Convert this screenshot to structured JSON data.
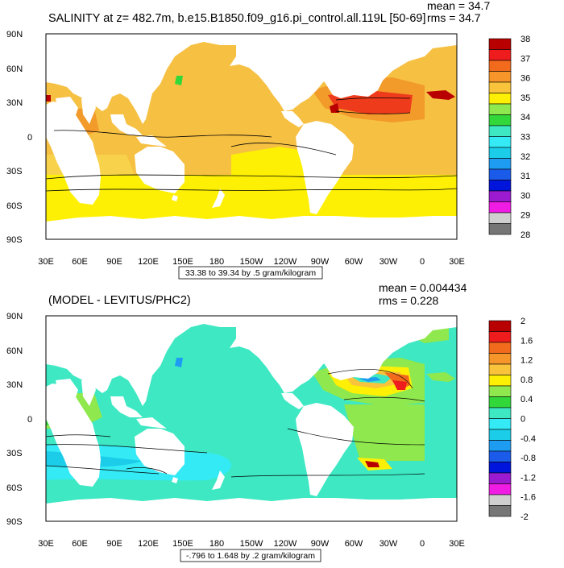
{
  "top": {
    "title": "SALINITY at z= 482.7m, b.e15.B1850.f09_g16.pi_control.all.119L [50-69]",
    "mean": "mean = 34.7",
    "rms": "rms = 34.7",
    "range": "33.38 to 39.34 by .5 gram/kilogram",
    "colorbar": {
      "labels": [
        "38",
        "37",
        "36",
        "35",
        "34",
        "33",
        "32",
        "31",
        "30",
        "29",
        "28"
      ],
      "colors": [
        "#b80000",
        "#ee1c1c",
        "#f26b1d",
        "#f5952a",
        "#f9c33b",
        "#fdf005",
        "#8fe84d",
        "#32d83a",
        "#3de8c3",
        "#34eaf5",
        "#1bcde9",
        "#1e9cf2",
        "#1a5be9",
        "#0015dc",
        "#9c1bd1",
        "#f01ce4",
        "#cfcfcf",
        "#767676"
      ]
    }
  },
  "bottom": {
    "title": "(MODEL - LEVITUS/PHC2)",
    "mean": "mean = 0.004434",
    "rms": "rms = 0.228",
    "range": "-.796 to 1.648 by .2 gram/kilogram",
    "colorbar": {
      "labels": [
        "2",
        "1.6",
        "1.2",
        "0.8",
        "0.4",
        "0",
        "-0.4",
        "-0.8",
        "-1.2",
        "-1.6",
        "-2"
      ],
      "colors": [
        "#b80000",
        "#ee1c1c",
        "#f26b1d",
        "#f5952a",
        "#f9c33b",
        "#fdf005",
        "#8fe84d",
        "#32d83a",
        "#3de8c3",
        "#34eaf5",
        "#1bcde9",
        "#1e9cf2",
        "#1a5be9",
        "#0015dc",
        "#9c1bd1",
        "#f01ce4",
        "#cfcfcf",
        "#767676"
      ]
    }
  },
  "axes": {
    "lat_labels": [
      "90N",
      "60N",
      "30N",
      "0",
      "30S",
      "60S",
      "90S"
    ],
    "lon_labels": [
      "30E",
      "60E",
      "90E",
      "120E",
      "150E",
      "180",
      "150W",
      "120W",
      "90W",
      "60W",
      "30W",
      "0",
      "30E"
    ]
  }
}
